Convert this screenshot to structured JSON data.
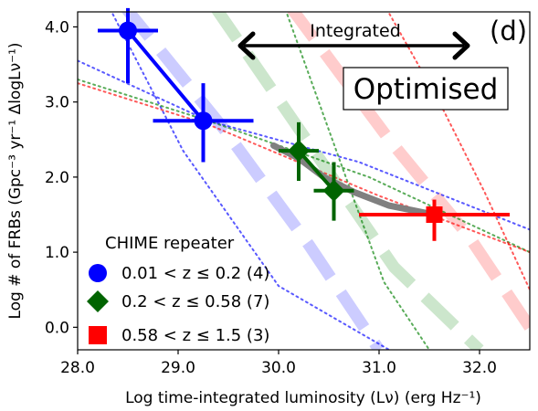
{
  "chart_data": {
    "type": "scatter",
    "panel_label": "(d)",
    "box_label": "Optimised",
    "arrow_label": "Integrated",
    "xlabel": "Log time-integrated luminosity (Lν) (erg Hz⁻¹)",
    "ylabel": "Log # of FRBs (Gpc⁻³ yr⁻¹ ΔlogLν⁻¹)",
    "xlim": [
      28.0,
      32.5
    ],
    "ylim": [
      -0.3,
      4.2
    ],
    "xticks": [
      "28.0",
      "29.0",
      "30.0",
      "31.0",
      "32.0"
    ],
    "yticks": [
      "0.0",
      "1.0",
      "2.0",
      "3.0",
      "4.0"
    ],
    "legend_title": "CHIME repeater",
    "legend_position": "lower-left",
    "series": [
      {
        "name": "0.01 < z ≤ 0.2 (4)",
        "color": "#0000ff",
        "marker": "circle",
        "points": [
          {
            "x": 28.5,
            "y": 3.95,
            "xerr": [
              0.3,
              0.3
            ],
            "yerr": [
              0.7,
              0.3
            ]
          },
          {
            "x": 29.25,
            "y": 2.75,
            "xerr": [
              0.5,
              0.5
            ],
            "yerr": [
              0.55,
              0.5
            ]
          }
        ]
      },
      {
        "name": "0.2 < z ≤ 0.58 (7)",
        "color": "#006400",
        "marker": "diamond",
        "points": [
          {
            "x": 30.2,
            "y": 2.35,
            "xerr": [
              0.2,
              0.2
            ],
            "yerr": [
              0.4,
              0.38
            ]
          },
          {
            "x": 30.55,
            "y": 1.82,
            "xerr": [
              0.2,
              0.2
            ],
            "yerr": [
              0.4,
              0.38
            ]
          }
        ]
      },
      {
        "name": "0.58 < z ≤ 1.5 (3)",
        "color": "#ff0000",
        "marker": "square",
        "points": [
          {
            "x": 31.55,
            "y": 1.5,
            "xerr": [
              0.75,
              0.75
            ],
            "yerr": [
              0.35,
              0.2
            ]
          }
        ]
      }
    ],
    "fit_curve": {
      "color": "#808080",
      "x": [
        29.95,
        30.2,
        30.45,
        30.75,
        31.1,
        31.55
      ],
      "y": [
        2.42,
        2.25,
        2.0,
        1.8,
        1.62,
        1.5
      ]
    },
    "dashed_bands": [
      {
        "color": "#0000ff",
        "x": [
          28.45,
          29.45,
          30.3,
          31.0
        ],
        "y": [
          4.3,
          2.65,
          1.1,
          -0.3
        ]
      },
      {
        "color": "#008000",
        "x": [
          29.35,
          30.25,
          31.15,
          32.0
        ],
        "y": [
          4.3,
          2.55,
          0.8,
          -0.3
        ]
      },
      {
        "color": "#ff0000",
        "x": [
          30.1,
          31.1,
          31.9,
          32.5
        ],
        "y": [
          4.3,
          2.5,
          1.2,
          0.0
        ]
      }
    ],
    "dotted_lines": [
      {
        "color": "#0000ff",
        "x": [
          28.0,
          29.3,
          30.8,
          32.5
        ],
        "y": [
          3.55,
          2.75,
          2.2,
          1.3
        ]
      },
      {
        "color": "#0000ff",
        "x": [
          28.3,
          29.05,
          30.0,
          31.1
        ],
        "y": [
          4.3,
          2.35,
          0.55,
          -0.3
        ]
      },
      {
        "color": "#008000",
        "x": [
          28.0,
          29.3,
          30.9,
          32.5
        ],
        "y": [
          3.3,
          2.75,
          2.0,
          1.0
        ]
      },
      {
        "color": "#008000",
        "x": [
          30.05,
          30.4,
          30.75,
          31.05,
          31.5
        ],
        "y": [
          4.3,
          3.0,
          1.7,
          0.6,
          -0.3
        ]
      },
      {
        "color": "#ff0000",
        "x": [
          28.0,
          29.3,
          31.0,
          32.5
        ],
        "y": [
          3.25,
          2.7,
          1.75,
          1.0
        ]
      },
      {
        "color": "#ff0000",
        "x": [
          31.05,
          31.6,
          32.05,
          32.5
        ],
        "y": [
          4.3,
          3.0,
          1.8,
          0.5
        ]
      }
    ],
    "arrow_range": [
      29.6,
      31.9
    ],
    "arrow_y": 3.75
  }
}
